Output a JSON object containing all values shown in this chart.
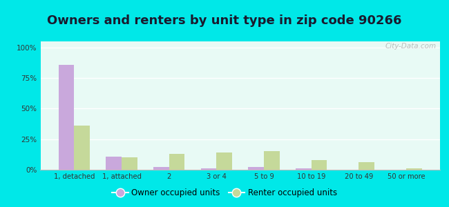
{
  "title": "Owners and renters by unit type in zip code 90266",
  "categories": [
    "1, detached",
    "1, attached",
    "2",
    "3 or 4",
    "5 to 9",
    "10 to 19",
    "20 to 49",
    "50 or more"
  ],
  "owner_values": [
    86,
    11,
    2,
    1,
    2,
    1,
    0,
    0
  ],
  "renter_values": [
    36,
    10,
    13,
    14,
    15,
    8,
    6,
    1
  ],
  "owner_color": "#c9a8dc",
  "renter_color": "#c5d99a",
  "plot_bg": "#e8faf5",
  "outer_bg": "#00e8e8",
  "title_fontsize": 13,
  "title_color": "#1a1a2e",
  "tick_color": "#333333",
  "yticks": [
    0,
    25,
    50,
    75,
    100
  ],
  "ylim": [
    0,
    105
  ],
  "legend_owner": "Owner occupied units",
  "legend_renter": "Renter occupied units",
  "watermark": "City-Data.com"
}
